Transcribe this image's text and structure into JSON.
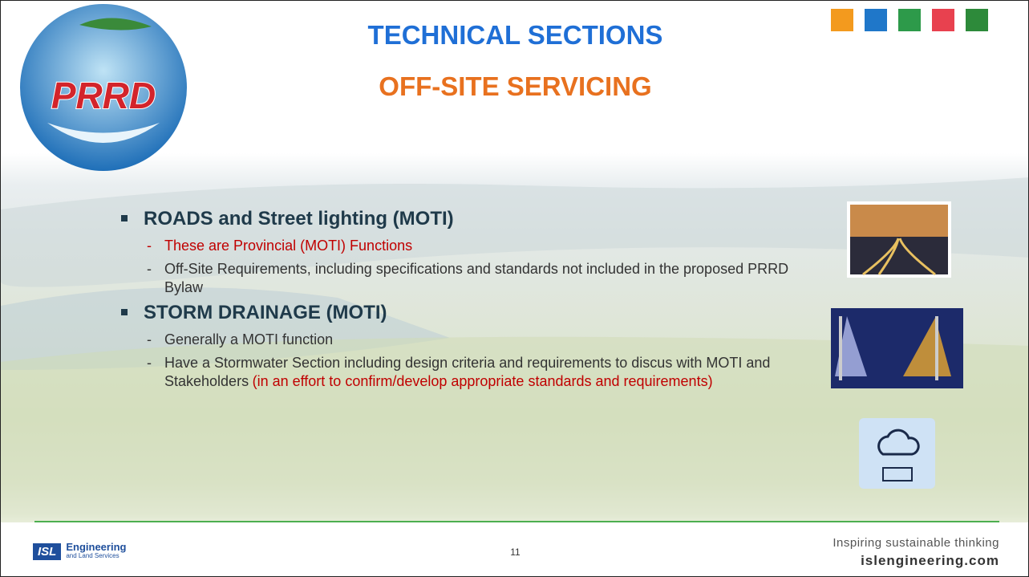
{
  "header": {
    "title": "TECHNICAL SECTIONS",
    "subtitle": "OFF-SITE SERVICING",
    "logo": "PRRD"
  },
  "sections": [
    {
      "heading": "ROADS and Street lighting (MOTI)",
      "items": [
        {
          "parts": [
            {
              "text": "These are Provincial (MOTI) Functions",
              "emphasis": true
            }
          ]
        },
        {
          "parts": [
            {
              "text": "Off-Site Requirements, including specifications and standards not included in the proposed PRRD Bylaw",
              "emphasis": false
            }
          ]
        }
      ]
    },
    {
      "heading": "STORM DRAINAGE (MOTI)",
      "items": [
        {
          "parts": [
            {
              "text": "Generally a MOTI function",
              "emphasis": false
            }
          ]
        },
        {
          "parts": [
            {
              "text": "Have a Stormwater Section including design criteria and requirements to discus with MOTI and Stakeholders",
              "emphasis": false
            },
            {
              "text": "(in an effort to confirm/develop appropriate standards and requirements)",
              "emphasis": true
            }
          ]
        }
      ]
    }
  ],
  "footer": {
    "brand": "ISL",
    "company": "Engineering",
    "company_sub": "and Land Services",
    "page": 11,
    "tagline": "Inspiring sustainable thinking",
    "website": "islengineering.com"
  }
}
